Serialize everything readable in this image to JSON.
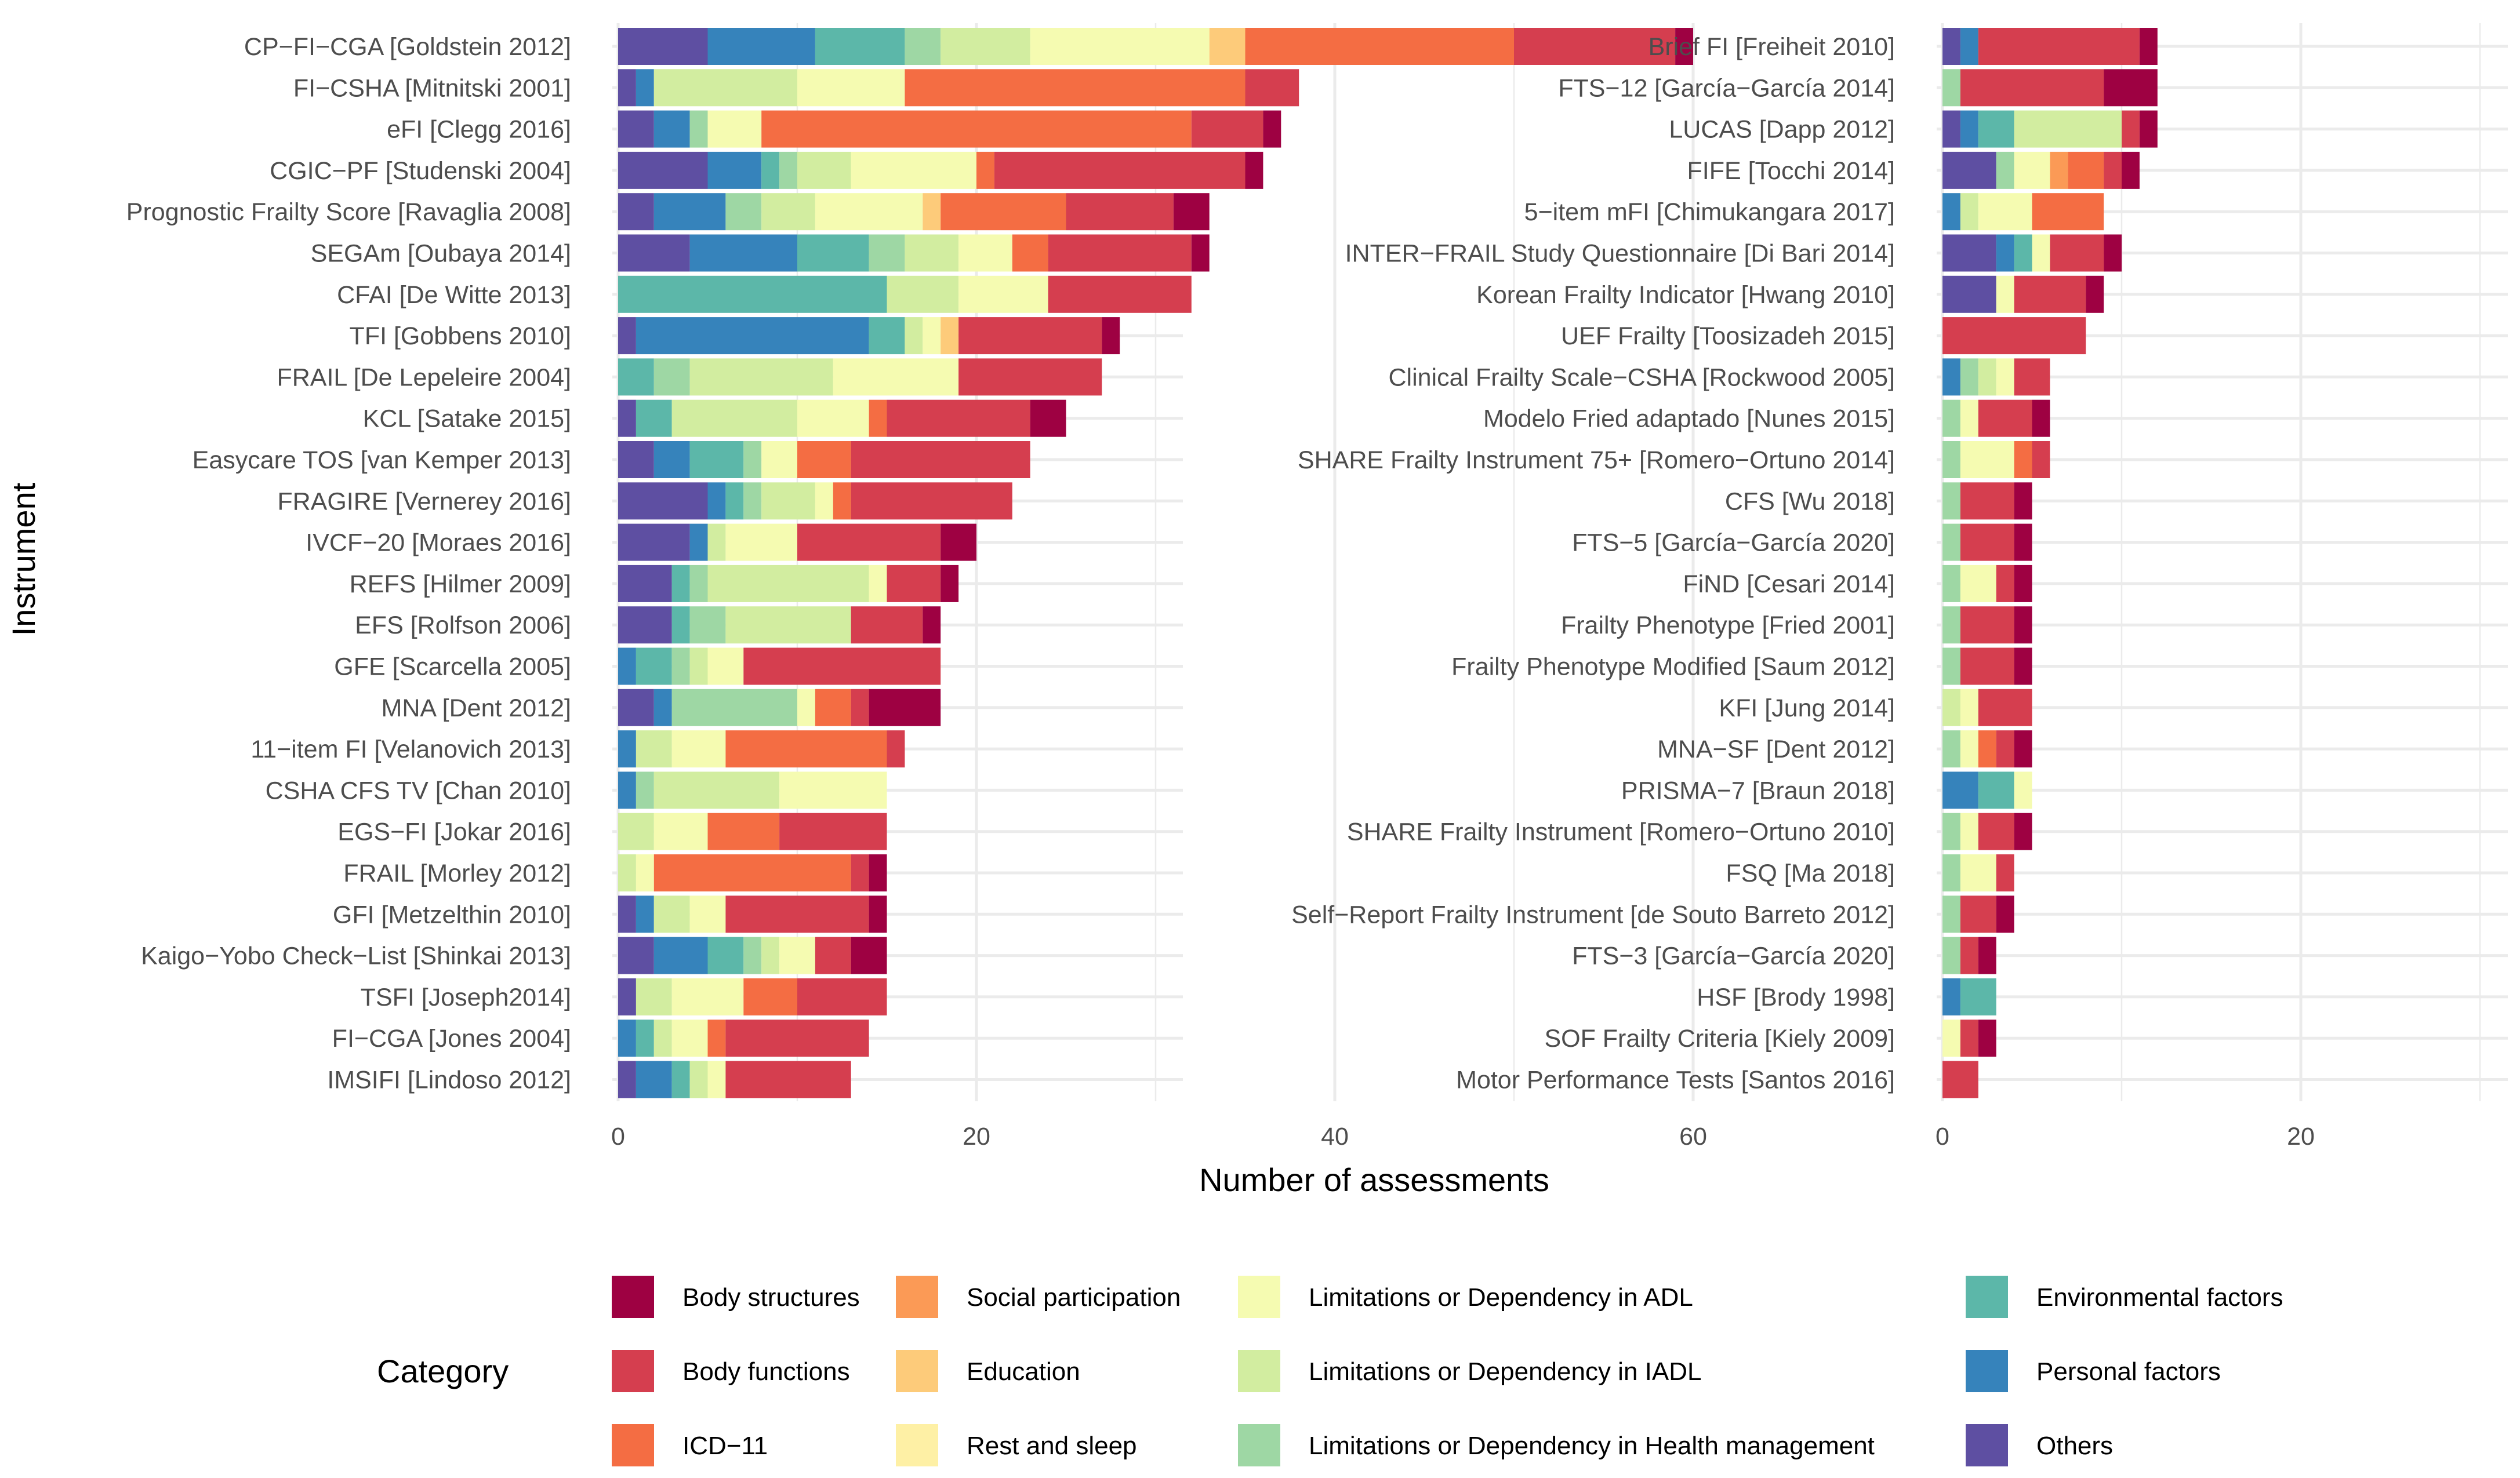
{
  "chart_data": {
    "type": "bar",
    "orientation": "horizontal",
    "stacked": true,
    "xlabel": "Number of assessments",
    "ylabel": "Instrument",
    "xlim": [
      0,
      62
    ],
    "xticks": [
      0,
      20,
      40,
      60
    ],
    "grid": true,
    "legend_title": "Category",
    "legend_position": "bottom",
    "categories": [
      {
        "name": "Body structures",
        "color": "#9E0142"
      },
      {
        "name": "Body functions",
        "color": "#D53E4F"
      },
      {
        "name": "ICD−11",
        "color": "#F46D43"
      },
      {
        "name": "Social participation",
        "color": "#FB9A56"
      },
      {
        "name": "Education",
        "color": "#FDCB7A"
      },
      {
        "name": "Rest and sleep",
        "color": "#FEF0A5"
      },
      {
        "name": "Limitations or Dependency in ADL",
        "color": "#F5FBB1"
      },
      {
        "name": "Limitations or Dependency in IADL",
        "color": "#D2EDA0"
      },
      {
        "name": "Limitations or Dependency in Health management",
        "color": "#9ED7A4"
      },
      {
        "name": "Environmental factors",
        "color": "#5CB7A9"
      },
      {
        "name": "Personal factors",
        "color": "#3683BB"
      },
      {
        "name": "Others",
        "color": "#5E4FA2"
      }
    ],
    "stack_order": [
      "Others",
      "Personal factors",
      "Environmental factors",
      "Limitations or Dependency in Health management",
      "Limitations or Dependency in IADL",
      "Limitations or Dependency in ADL",
      "Rest and sleep",
      "Education",
      "Social participation",
      "ICD−11",
      "Body functions",
      "Body structures"
    ],
    "panels": [
      {
        "name": "left",
        "instruments": [
          {
            "label": "CP−FI−CGA [Goldstein 2012]",
            "values": {
              "Others": 5,
              "Personal factors": 6,
              "Environmental factors": 5,
              "Limitations or Dependency in Health management": 2,
              "Limitations or Dependency in IADL": 5,
              "Limitations or Dependency in ADL": 10,
              "Education": 2,
              "ICD−11": 15,
              "Body functions": 9,
              "Body structures": 1
            }
          },
          {
            "label": "FI−CSHA [Mitnitski 2001]",
            "values": {
              "Others": 1,
              "Personal factors": 1,
              "Limitations or Dependency in IADL": 8,
              "Limitations or Dependency in ADL": 6,
              "ICD−11": 19,
              "Body functions": 3
            }
          },
          {
            "label": "eFI [Clegg 2016]",
            "values": {
              "Others": 2,
              "Personal factors": 2,
              "Limitations or Dependency in Health management": 1,
              "Limitations or Dependency in ADL": 3,
              "ICD−11": 24,
              "Body functions": 4,
              "Body structures": 1
            }
          },
          {
            "label": "CGIC−PF [Studenski 2004]",
            "values": {
              "Others": 5,
              "Personal factors": 3,
              "Environmental factors": 1,
              "Limitations or Dependency in Health management": 1,
              "Limitations or Dependency in IADL": 3,
              "Limitations or Dependency in ADL": 7,
              "ICD−11": 1,
              "Body functions": 14,
              "Body structures": 1
            }
          },
          {
            "label": "Prognostic Frailty Score [Ravaglia 2008]",
            "values": {
              "Others": 2,
              "Personal factors": 4,
              "Limitations or Dependency in Health management": 2,
              "Limitations or Dependency in IADL": 3,
              "Limitations or Dependency in ADL": 6,
              "Education": 1,
              "ICD−11": 7,
              "Body functions": 6,
              "Body structures": 2
            }
          },
          {
            "label": "SEGAm [Oubaya 2014]",
            "values": {
              "Others": 4,
              "Personal factors": 6,
              "Environmental factors": 4,
              "Limitations or Dependency in Health management": 2,
              "Limitations or Dependency in IADL": 3,
              "Limitations or Dependency in ADL": 3,
              "ICD−11": 2,
              "Body functions": 8,
              "Body structures": 1
            }
          },
          {
            "label": "CFAI [De Witte 2013]",
            "values": {
              "Environmental factors": 15,
              "Limitations or Dependency in IADL": 4,
              "Limitations or Dependency in ADL": 5,
              "Body functions": 8
            }
          },
          {
            "label": "TFI [Gobbens 2010]",
            "values": {
              "Others": 1,
              "Personal factors": 13,
              "Environmental factors": 2,
              "Limitations or Dependency in IADL": 1,
              "Limitations or Dependency in ADL": 1,
              "Education": 1,
              "Body functions": 8,
              "Body structures": 1
            }
          },
          {
            "label": "FRAIL [De Lepeleire 2004]",
            "values": {
              "Environmental factors": 2,
              "Limitations or Dependency in Health management": 2,
              "Limitations or Dependency in IADL": 8,
              "Limitations or Dependency in ADL": 7,
              "Body functions": 8
            }
          },
          {
            "label": "KCL [Satake 2015]",
            "values": {
              "Others": 1,
              "Environmental factors": 2,
              "Limitations or Dependency in IADL": 7,
              "Limitations or Dependency in ADL": 4,
              "ICD−11": 1,
              "Body functions": 8,
              "Body structures": 2
            }
          },
          {
            "label": "Easycare TOS [van Kemper 2013]",
            "values": {
              "Others": 2,
              "Personal factors": 2,
              "Environmental factors": 3,
              "Limitations or Dependency in Health management": 1,
              "Limitations or Dependency in ADL": 2,
              "ICD−11": 3,
              "Body functions": 10
            }
          },
          {
            "label": "FRAGIRE [Vernerey 2016]",
            "values": {
              "Others": 5,
              "Personal factors": 1,
              "Environmental factors": 1,
              "Limitations or Dependency in Health management": 1,
              "Limitations or Dependency in IADL": 3,
              "Limitations or Dependency in ADL": 1,
              "ICD−11": 1,
              "Body functions": 9
            }
          },
          {
            "label": "IVCF−20 [Moraes 2016]",
            "values": {
              "Others": 4,
              "Personal factors": 1,
              "Limitations or Dependency in IADL": 1,
              "Limitations or Dependency in ADL": 4,
              "Body functions": 8,
              "Body structures": 2
            }
          },
          {
            "label": "REFS [Hilmer 2009]",
            "values": {
              "Others": 3,
              "Environmental factors": 1,
              "Limitations or Dependency in Health management": 1,
              "Limitations or Dependency in IADL": 9,
              "Limitations or Dependency in ADL": 1,
              "Body functions": 3,
              "Body structures": 1
            }
          },
          {
            "label": "EFS [Rolfson 2006]",
            "values": {
              "Others": 3,
              "Environmental factors": 1,
              "Limitations or Dependency in Health management": 2,
              "Limitations or Dependency in IADL": 7,
              "Body functions": 4,
              "Body structures": 1
            }
          },
          {
            "label": "GFE [Scarcella 2005]",
            "values": {
              "Personal factors": 1,
              "Environmental factors": 2,
              "Limitations or Dependency in Health management": 1,
              "Limitations or Dependency in IADL": 1,
              "Limitations or Dependency in ADL": 2,
              "Body functions": 11
            }
          },
          {
            "label": "MNA [Dent 2012]",
            "values": {
              "Others": 2,
              "Personal factors": 1,
              "Limitations or Dependency in Health management": 7,
              "Limitations or Dependency in ADL": 1,
              "ICD−11": 2,
              "Body functions": 1,
              "Body structures": 4
            }
          },
          {
            "label": "11−item FI [Velanovich 2013]",
            "values": {
              "Personal factors": 1,
              "Limitations or Dependency in IADL": 2,
              "Limitations or Dependency in ADL": 3,
              "ICD−11": 9,
              "Body functions": 1
            }
          },
          {
            "label": "CSHA CFS TV [Chan 2010]",
            "values": {
              "Personal factors": 1,
              "Limitations or Dependency in Health management": 1,
              "Limitations or Dependency in IADL": 7,
              "Limitations or Dependency in ADL": 6
            }
          },
          {
            "label": "EGS−FI [Jokar 2016]",
            "values": {
              "Limitations or Dependency in IADL": 2,
              "Limitations or Dependency in ADL": 3,
              "ICD−11": 4,
              "Body functions": 6
            }
          },
          {
            "label": "FRAIL [Morley 2012]",
            "values": {
              "Limitations or Dependency in IADL": 1,
              "Limitations or Dependency in ADL": 1,
              "ICD−11": 11,
              "Body functions": 1,
              "Body structures": 1
            }
          },
          {
            "label": "GFI [Metzelthin 2010]",
            "values": {
              "Others": 1,
              "Personal factors": 1,
              "Limitations or Dependency in IADL": 2,
              "Limitations or Dependency in ADL": 2,
              "Body functions": 8,
              "Body structures": 1
            }
          },
          {
            "label": "Kaigo−Yobo Check−List [Shinkai 2013]",
            "values": {
              "Others": 2,
              "Personal factors": 3,
              "Environmental factors": 2,
              "Limitations or Dependency in Health management": 1,
              "Limitations or Dependency in IADL": 1,
              "Limitations or Dependency in ADL": 2,
              "Body functions": 2,
              "Body structures": 2
            }
          },
          {
            "label": "TSFI [Joseph2014]",
            "values": {
              "Others": 1,
              "Limitations or Dependency in IADL": 2,
              "Limitations or Dependency in ADL": 4,
              "ICD−11": 3,
              "Body functions": 5
            }
          },
          {
            "label": "FI−CGA [Jones 2004]",
            "values": {
              "Personal factors": 1,
              "Environmental factors": 1,
              "Limitations or Dependency in IADL": 1,
              "Limitations or Dependency in ADL": 2,
              "ICD−11": 1,
              "Body functions": 8
            }
          },
          {
            "label": "IMSIFI [Lindoso 2012]",
            "values": {
              "Others": 1,
              "Personal factors": 2,
              "Environmental factors": 1,
              "Limitations or Dependency in IADL": 1,
              "Limitations or Dependency in ADL": 1,
              "Body functions": 7
            }
          }
        ]
      },
      {
        "name": "right",
        "instruments": [
          {
            "label": "Brief FI [Freiheit 2010]",
            "values": {
              "Others": 1,
              "Personal factors": 1,
              "Body functions": 9,
              "Body structures": 1
            }
          },
          {
            "label": "FTS−12 [García−García 2014]",
            "values": {
              "Limitations or Dependency in Health management": 1,
              "Body functions": 8,
              "Body structures": 3
            }
          },
          {
            "label": "LUCAS [Dapp 2012]",
            "values": {
              "Others": 1,
              "Personal factors": 1,
              "Environmental factors": 2,
              "Limitations or Dependency in IADL": 6,
              "Body functions": 1,
              "Body structures": 1
            }
          },
          {
            "label": "FIFE [Tocchi 2014]",
            "values": {
              "Others": 3,
              "Limitations or Dependency in Health management": 1,
              "Limitations or Dependency in ADL": 2,
              "Social participation": 1,
              "ICD−11": 2,
              "Body functions": 1,
              "Body structures": 1
            }
          },
          {
            "label": "5−item mFI [Chimukangara 2017]",
            "values": {
              "Personal factors": 1,
              "Limitations or Dependency in IADL": 1,
              "Limitations or Dependency in ADL": 3,
              "ICD−11": 4
            }
          },
          {
            "label": "INTER−FRAIL Study Questionnaire [Di Bari 2014]",
            "values": {
              "Others": 3,
              "Personal factors": 1,
              "Environmental factors": 1,
              "Limitations or Dependency in ADL": 1,
              "Body functions": 3,
              "Body structures": 1
            }
          },
          {
            "label": "Korean Frailty Indicator [Hwang 2010]",
            "values": {
              "Others": 3,
              "Limitations or Dependency in ADL": 1,
              "Body functions": 4,
              "Body structures": 1
            }
          },
          {
            "label": "UEF Frailty [Toosizadeh 2015]",
            "values": {
              "Body functions": 8
            }
          },
          {
            "label": "Clinical Frailty Scale−CSHA [Rockwood 2005]",
            "values": {
              "Personal factors": 1,
              "Limitations or Dependency in Health management": 1,
              "Limitations or Dependency in IADL": 1,
              "Limitations or Dependency in ADL": 1,
              "Body functions": 2
            }
          },
          {
            "label": "Modelo Fried adaptado [Nunes 2015]",
            "values": {
              "Limitations or Dependency in Health management": 1,
              "Limitations or Dependency in ADL": 1,
              "Body functions": 3,
              "Body structures": 1
            }
          },
          {
            "label": "SHARE Frailty Instrument 75+ [Romero−Ortuno 2014]",
            "values": {
              "Limitations or Dependency in Health management": 1,
              "Limitations or Dependency in ADL": 3,
              "ICD−11": 1,
              "Body functions": 1
            }
          },
          {
            "label": "CFS [Wu 2018]",
            "values": {
              "Limitations or Dependency in Health management": 1,
              "Body functions": 3,
              "Body structures": 1
            }
          },
          {
            "label": "FTS−5 [García−García 2020]",
            "values": {
              "Limitations or Dependency in Health management": 1,
              "Body functions": 3,
              "Body structures": 1
            }
          },
          {
            "label": "FiND [Cesari 2014]",
            "values": {
              "Limitations or Dependency in Health management": 1,
              "Limitations or Dependency in ADL": 2,
              "Body functions": 1,
              "Body structures": 1
            }
          },
          {
            "label": "Frailty Phenotype [Fried 2001]",
            "values": {
              "Limitations or Dependency in Health management": 1,
              "Body functions": 3,
              "Body structures": 1
            }
          },
          {
            "label": "Frailty Phenotype Modified [Saum 2012]",
            "values": {
              "Limitations or Dependency in Health management": 1,
              "Body functions": 3,
              "Body structures": 1
            }
          },
          {
            "label": "KFI [Jung 2014]",
            "values": {
              "Limitations or Dependency in IADL": 1,
              "Limitations or Dependency in ADL": 1,
              "Body functions": 3
            }
          },
          {
            "label": "MNA−SF [Dent 2012]",
            "values": {
              "Limitations or Dependency in Health management": 1,
              "Limitations or Dependency in ADL": 1,
              "ICD−11": 1,
              "Body functions": 1,
              "Body structures": 1
            }
          },
          {
            "label": "PRISMA−7 [Braun 2018]",
            "values": {
              "Personal factors": 2,
              "Environmental factors": 2,
              "Limitations or Dependency in ADL": 1
            }
          },
          {
            "label": "SHARE Frailty Instrument [Romero−Ortuno 2010]",
            "values": {
              "Limitations or Dependency in Health management": 1,
              "Limitations or Dependency in ADL": 1,
              "Body functions": 2,
              "Body structures": 1
            }
          },
          {
            "label": "FSQ [Ma 2018]",
            "values": {
              "Limitations or Dependency in Health management": 1,
              "Limitations or Dependency in ADL": 2,
              "Body functions": 1
            }
          },
          {
            "label": "Self−Report Frailty Instrument [de Souto Barreto 2012]",
            "values": {
              "Limitations or Dependency in Health management": 1,
              "Body functions": 2,
              "Body structures": 1
            }
          },
          {
            "label": "FTS−3 [García−García 2020]",
            "values": {
              "Limitations or Dependency in Health management": 1,
              "Body functions": 1,
              "Body structures": 1
            }
          },
          {
            "label": "HSF [Brody 1998]",
            "values": {
              "Personal factors": 1,
              "Environmental factors": 2
            }
          },
          {
            "label": "SOF Frailty Criteria [Kiely 2009]",
            "values": {
              "Limitations or Dependency in ADL": 1,
              "Body functions": 1,
              "Body structures": 1
            }
          },
          {
            "label": "Motor Performance Tests [Santos 2016]",
            "values": {
              "Body functions": 2
            }
          }
        ]
      }
    ]
  }
}
